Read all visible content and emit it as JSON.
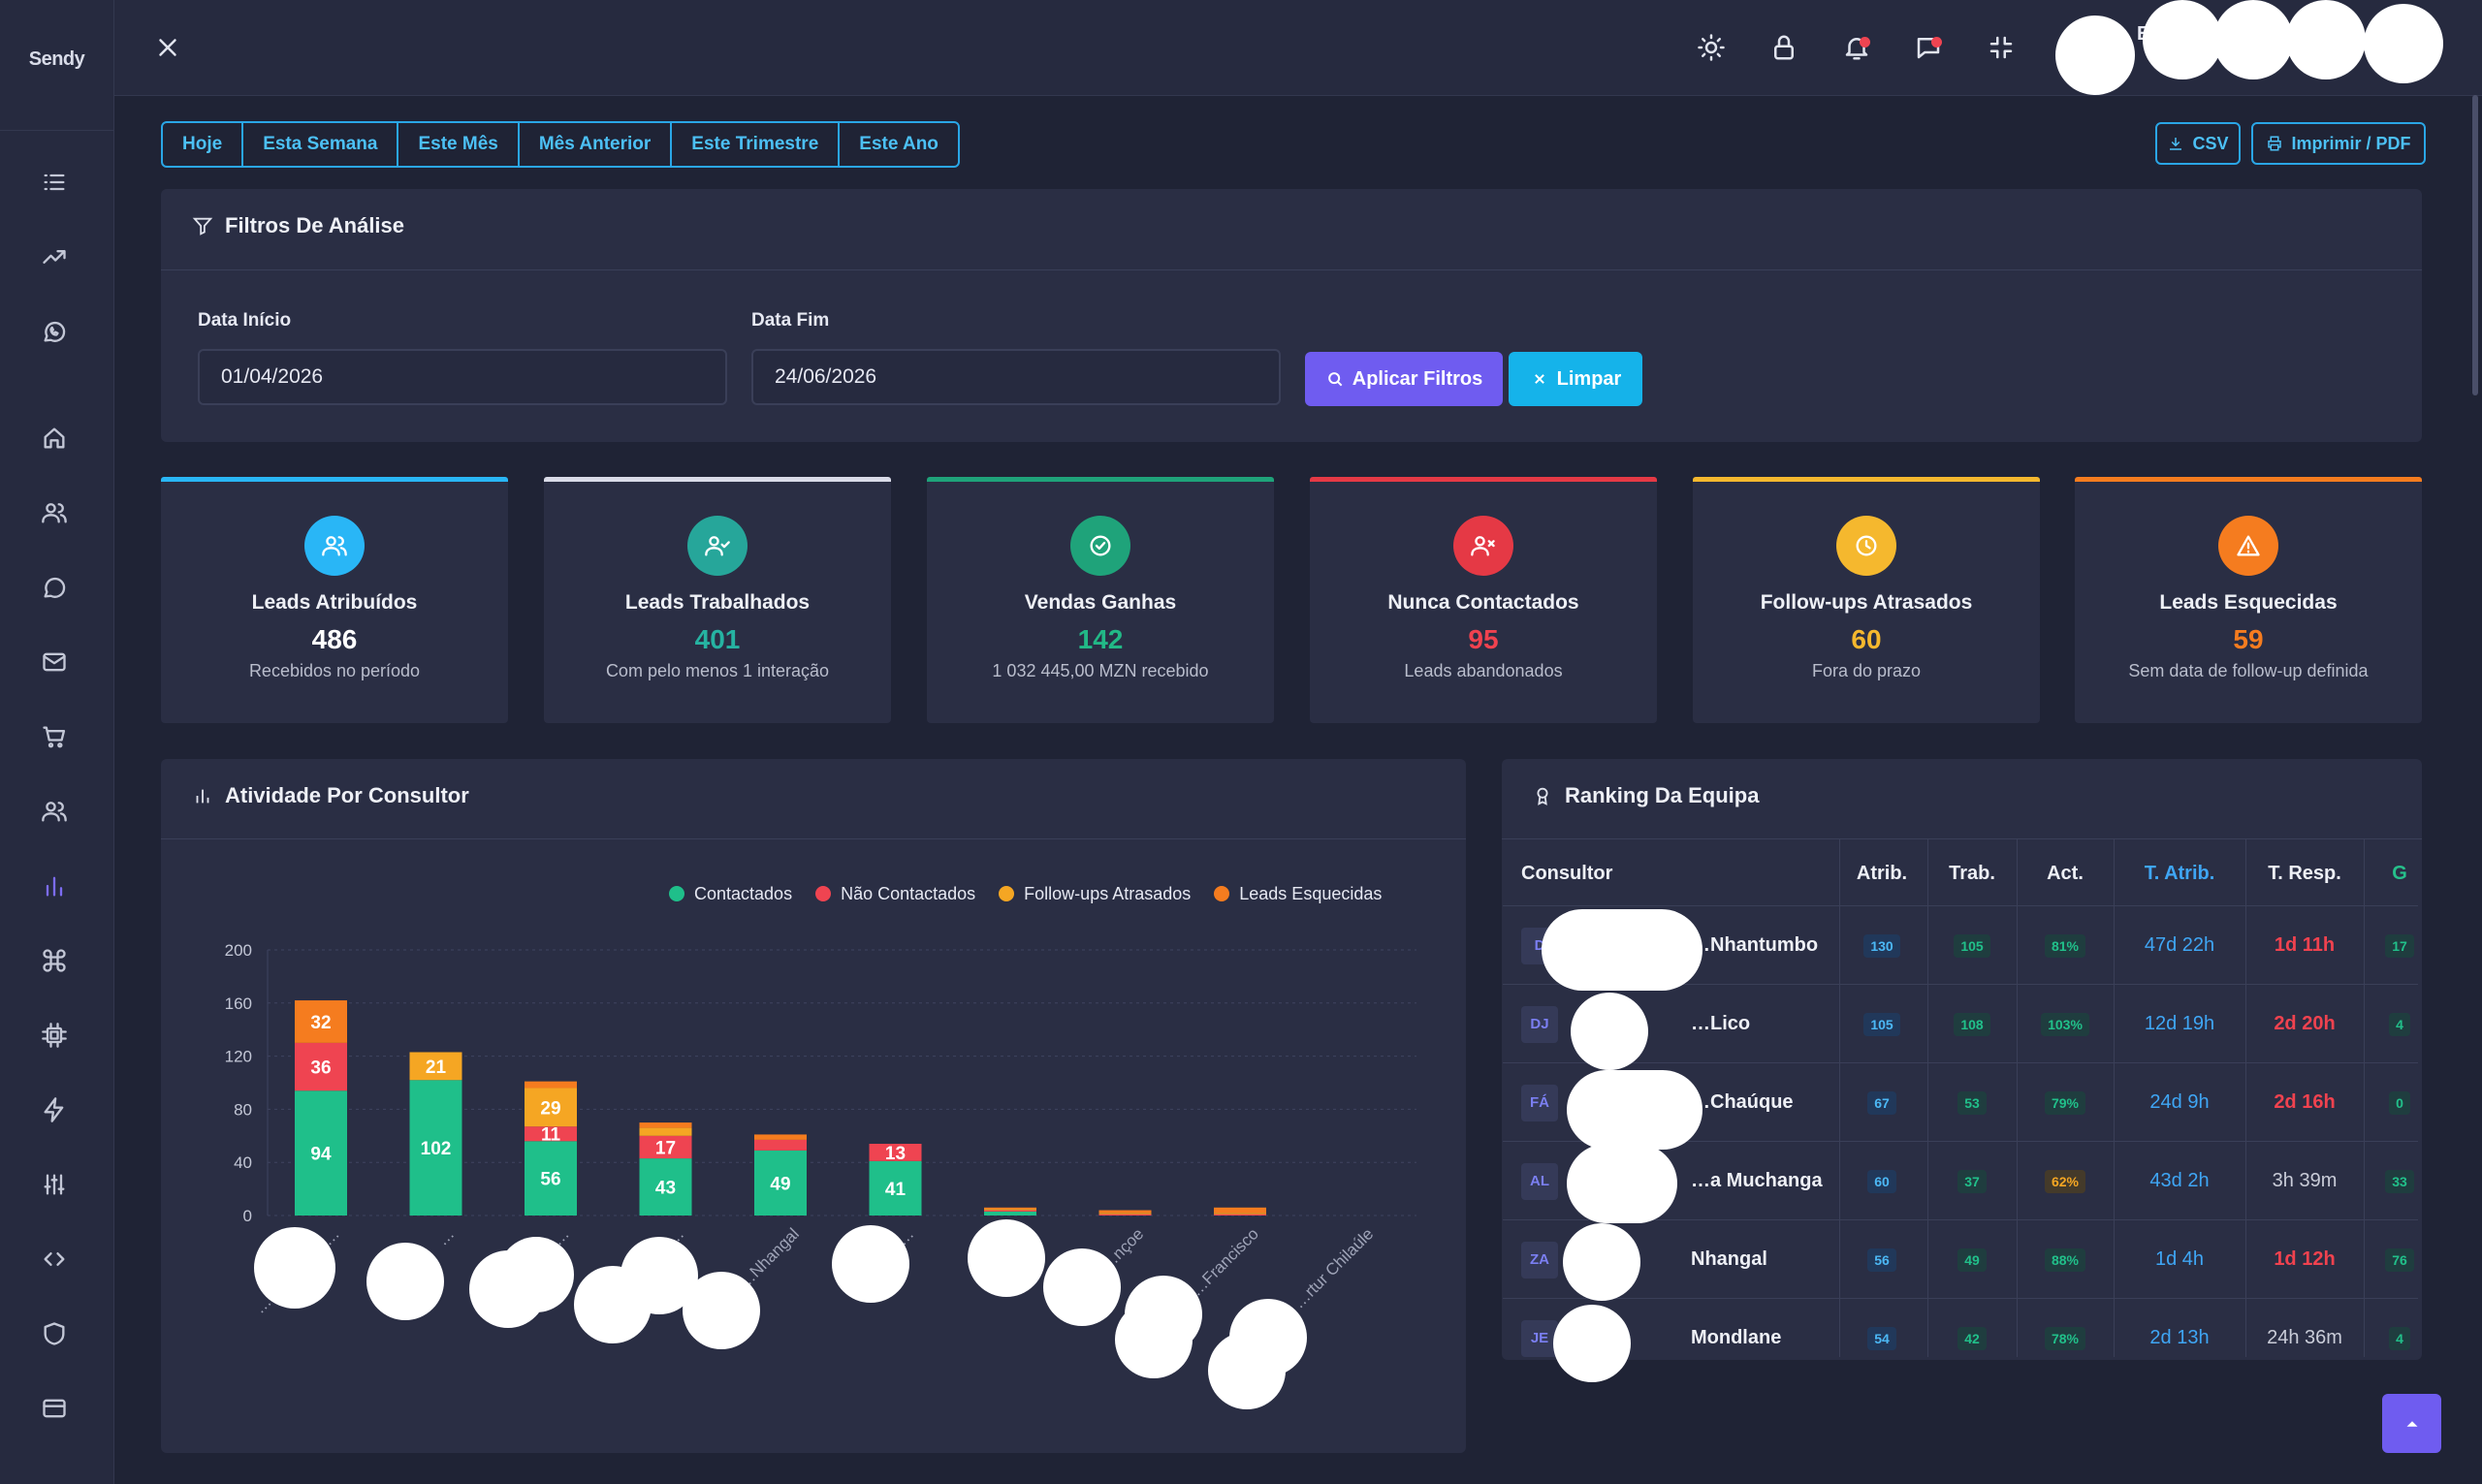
{
  "brand": "Sendy",
  "date_tabs": [
    "Hoje",
    "Esta Semana",
    "Este Mês",
    "Mês Anterior",
    "Este Trimestre",
    "Este Ano"
  ],
  "export": {
    "csv": "CSV",
    "pdf": "Imprimir / PDF"
  },
  "filters": {
    "title": "Filtros De Análise",
    "start_label": "Data Início",
    "start_value": "01/04/2026",
    "end_label": "Data Fim",
    "end_value": "24/06/2026",
    "apply": "Aplicar Filtros",
    "clear": "Limpar"
  },
  "kpis": [
    {
      "title": "Leads Atribuídos",
      "value": "486",
      "sub": "Recebidos no período",
      "color": "#29b6f6"
    },
    {
      "title": "Leads Trabalhados",
      "value": "401",
      "sub": "Com pelo menos 1 interação",
      "color": "#26a69a"
    },
    {
      "title": "Vendas Ganhas",
      "value": "142",
      "sub": "1 032 445,00  MZN recebido",
      "color": "#1fa37a"
    },
    {
      "title": "Nunca Contactados",
      "value": "95",
      "sub": "Leads abandonados",
      "color": "#e53945"
    },
    {
      "title": "Follow-ups Atrasados",
      "value": "60",
      "sub": "Fora do prazo",
      "color": "#f5b82e"
    },
    {
      "title": "Leads Esquecidas",
      "value": "59",
      "sub": "Sem data de follow-up definida",
      "color": "#f57c1f"
    }
  ],
  "activity": {
    "title": "Atividade Por Consultor",
    "chart_data": {
      "type": "bar",
      "stacked": true,
      "categories": [
        "…nia Osório …",
        "…",
        "Fátima B…",
        "Alexa…",
        "…Nhangal",
        "Jenny…",
        "Cátia…",
        "…nçoe",
        "…Francisco",
        "…rtur Chilaúle"
      ],
      "series": [
        {
          "name": "Contactados",
          "color": "#1fbf8a",
          "values": [
            94,
            102,
            56,
            43,
            49,
            41,
            3,
            0,
            0,
            0
          ]
        },
        {
          "name": "Não Contactados",
          "color": "#ef4451",
          "values": [
            36,
            0,
            11,
            17,
            8,
            13,
            1,
            1,
            1,
            0
          ]
        },
        {
          "name": "Follow-ups Atrasados",
          "color": "#f5a623",
          "values": [
            0,
            21,
            29,
            6,
            0,
            0,
            1,
            1,
            1,
            0
          ]
        },
        {
          "name": "Leads Esquecidas",
          "color": "#f57c1f",
          "values": [
            32,
            0,
            5,
            4,
            4,
            0,
            1,
            2,
            4,
            0
          ]
        }
      ],
      "data_labels": [
        [
          94,
          36,
          null,
          32
        ],
        [
          102,
          null,
          21,
          null
        ],
        [
          56,
          11,
          29,
          null
        ],
        [
          43,
          17,
          null,
          null
        ],
        [
          49,
          null,
          null,
          null
        ],
        [
          41,
          13,
          null,
          null
        ],
        [
          null,
          null,
          null,
          null
        ],
        [
          null,
          null,
          null,
          null
        ],
        [
          null,
          null,
          null,
          null
        ],
        [
          null,
          null,
          null,
          null
        ]
      ],
      "y_ticks": [
        "0",
        "40",
        "80",
        "120",
        "160",
        "200"
      ],
      "ylim": [
        0,
        200
      ],
      "grid": true,
      "legend": "top-right"
    }
  },
  "ranking": {
    "title": "Ranking Da Equipa",
    "columns": [
      "Consultor",
      "Atrib.",
      "Trab.",
      "Act.",
      "T. Atrib.",
      "T. Resp.",
      "G"
    ],
    "rows": [
      {
        "initials": "D",
        "name": "…Nhantumbo",
        "atrib": "130",
        "trab": "105",
        "act": "81%",
        "act_color": "green",
        "t_atrib": "47d 22h",
        "t_resp": "1d 11h",
        "resp_red": true,
        "g": "17"
      },
      {
        "initials": "DJ",
        "name": "…Lico",
        "atrib": "105",
        "trab": "108",
        "act": "103%",
        "act_color": "green",
        "t_atrib": "12d 19h",
        "t_resp": "2d 20h",
        "resp_red": true,
        "g": "4"
      },
      {
        "initials": "FÁ",
        "name": "…Chaúque",
        "atrib": "67",
        "trab": "53",
        "act": "79%",
        "act_color": "green",
        "t_atrib": "24d 9h",
        "t_resp": "2d 16h",
        "resp_red": true,
        "g": "0"
      },
      {
        "initials": "AL",
        "name": "…a Muchanga",
        "atrib": "60",
        "trab": "37",
        "act": "62%",
        "act_color": "orange",
        "t_atrib": "43d 2h",
        "t_resp": "3h 39m",
        "resp_red": false,
        "g": "33"
      },
      {
        "initials": "ZA",
        "name": "Nhangal",
        "atrib": "56",
        "trab": "49",
        "act": "88%",
        "act_color": "green",
        "t_atrib": "1d 4h",
        "t_resp": "1d 12h",
        "resp_red": true,
        "g": "76"
      },
      {
        "initials": "JE",
        "name": "Mondlane",
        "atrib": "54",
        "trab": "42",
        "act": "78%",
        "act_color": "green",
        "t_atrib": "2d 13h",
        "t_resp": "24h 36m",
        "resp_red": false,
        "g": "4"
      }
    ]
  },
  "header_user_initial": "E"
}
